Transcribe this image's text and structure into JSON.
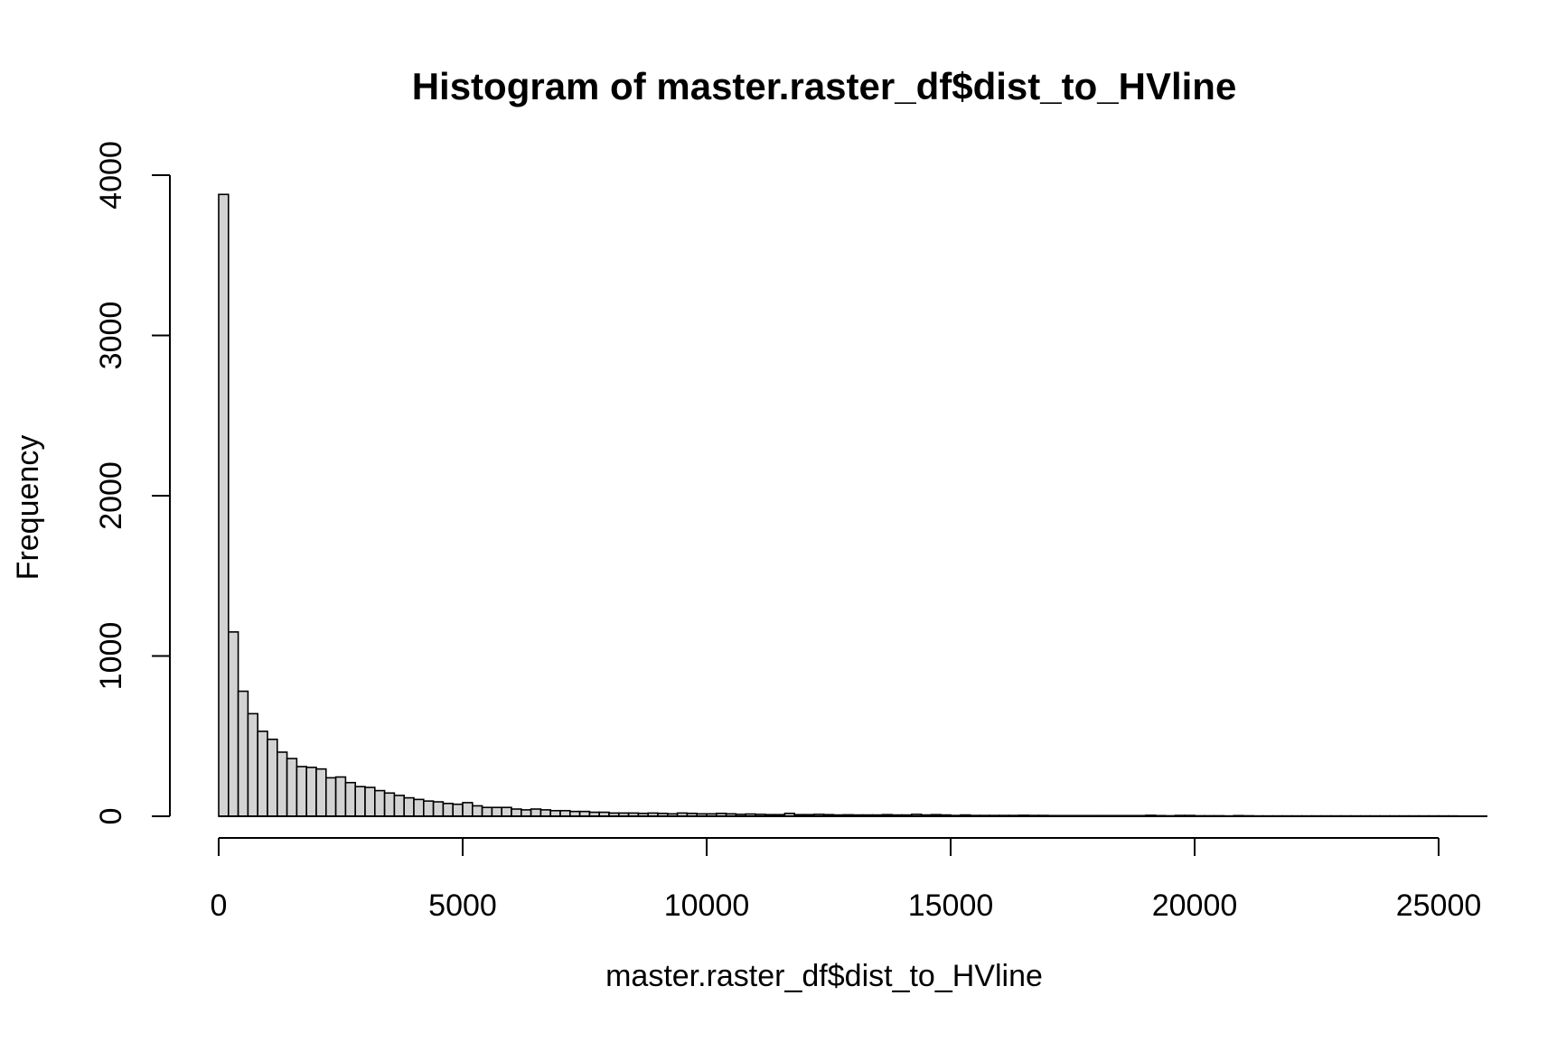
{
  "chart_data": {
    "type": "bar",
    "title": "Histogram of master.raster_df$dist_to_HVline",
    "xlabel": "master.raster_df$dist_to_HVline",
    "ylabel": "Frequency",
    "xlim": [
      0,
      26000
    ],
    "ylim": [
      0,
      4000
    ],
    "x_ticks": [
      0,
      5000,
      10000,
      15000,
      20000,
      25000
    ],
    "x_tick_labels": [
      "0",
      "5000",
      "10000",
      "15000",
      "20000",
      "25000"
    ],
    "y_ticks": [
      0,
      1000,
      2000,
      3000,
      4000
    ],
    "y_tick_labels": [
      "0",
      "1000",
      "2000",
      "3000",
      "4000"
    ],
    "bin_width": 200,
    "bin_start": 0,
    "values": [
      3880,
      1150,
      780,
      640,
      530,
      480,
      400,
      360,
      310,
      305,
      295,
      240,
      245,
      210,
      185,
      180,
      160,
      145,
      130,
      115,
      105,
      95,
      90,
      80,
      75,
      85,
      65,
      55,
      55,
      55,
      45,
      40,
      45,
      40,
      35,
      35,
      30,
      30,
      25,
      25,
      20,
      20,
      20,
      18,
      20,
      18,
      15,
      20,
      18,
      15,
      15,
      18,
      15,
      12,
      14,
      12,
      10,
      10,
      18,
      10,
      10,
      12,
      10,
      8,
      9,
      8,
      8,
      8,
      10,
      8,
      8,
      12,
      8,
      10,
      8,
      5,
      8,
      5,
      5,
      5,
      5,
      5,
      6,
      5,
      5,
      4,
      4,
      4,
      4,
      4,
      4,
      4,
      4,
      4,
      4,
      6,
      4,
      3,
      5,
      5,
      3,
      3,
      3,
      2,
      4,
      3,
      2,
      2,
      2,
      2,
      2,
      2,
      2,
      2,
      2,
      2,
      2,
      2,
      2,
      2,
      2,
      2,
      2,
      2,
      2,
      2,
      2
    ]
  }
}
